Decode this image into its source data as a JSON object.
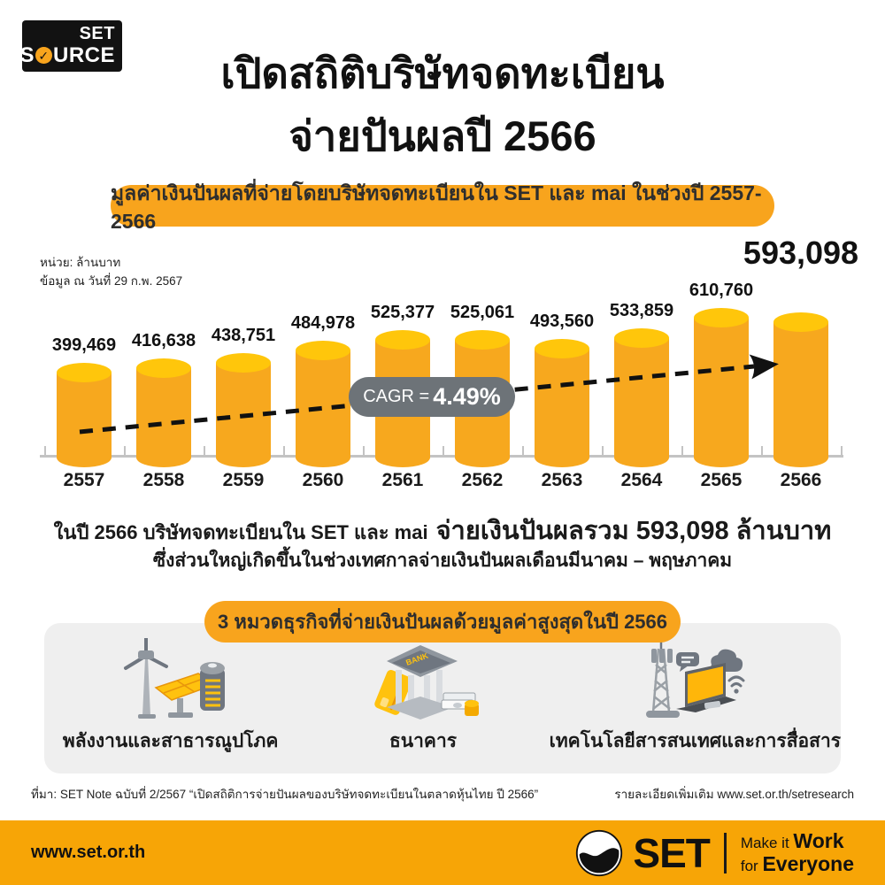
{
  "brand_badge": {
    "line1": "SET",
    "line2_prefix": "S",
    "line2_o": "✓",
    "line2_suffix": "URCE"
  },
  "header": {
    "title_line1": "เปิดสถิติบริษัทจดทะเบียน",
    "title_line2": "จ่ายปันผลปี 2566"
  },
  "banner": {
    "text": "มูลค่าเงินปันผลที่จ่ายโดยบริษัทจดทะเบียนใน SET และ mai ในช่วงปี 2557-2566"
  },
  "chart_notes": {
    "unit": "หน่วย: ล้านบาท",
    "as_of": "ข้อมูล ณ วันที่ 29 ก.พ. 2567"
  },
  "chart_data": {
    "type": "bar",
    "title": "มูลค่าเงินปันผลที่จ่ายโดยบริษัทจดทะเบียนใน SET และ mai ในช่วงปี 2557-2566",
    "unit": "ล้านบาท",
    "categories": [
      "2557",
      "2558",
      "2559",
      "2560",
      "2561",
      "2562",
      "2563",
      "2564",
      "2565",
      "2566"
    ],
    "values": [
      399469,
      416638,
      438751,
      484978,
      525377,
      525061,
      493560,
      533859,
      610760,
      593098
    ],
    "value_labels": [
      "399,469",
      "416,638",
      "438,751",
      "484,978",
      "525,377",
      "525,061",
      "493,560",
      "533,859",
      "610,760",
      "593,098"
    ],
    "highlight_index": 9,
    "cagr_prefix": "CAGR = ",
    "cagr_value": "4.49%",
    "ylim": [
      0,
      650000
    ],
    "grid": false,
    "legend": "none",
    "bar_color": "#F7A81E",
    "bar_top_color": "#FFC60B",
    "trend": "dashed arrow rising left-to-right"
  },
  "summary": {
    "line1_normal": "ในปี 2566 บริษัทจดทะเบียนใน SET และ mai",
    "line1_bold": "จ่ายเงินปันผลรวม 593,098 ล้านบาท",
    "line2": "ซึ่งส่วนใหญ่เกิดขึ้นในช่วงเทศกาลจ่ายเงินปันผลเดือนมีนาคม – พฤษภาคม"
  },
  "sectors": {
    "heading": "3 หมวดธุรกิจที่จ่ายเงินปันผลด้วยมูลค่าสูงสุดในปี 2566",
    "items": [
      {
        "label": "พลังงานและสาธารณูปโภค",
        "icon": "energy-utilities-icon"
      },
      {
        "label": "ธนาคาร",
        "icon": "bank-icon"
      },
      {
        "label": "เทคโนโลยีสารสนเทศและการสื่อสาร",
        "icon": "ict-icon"
      }
    ]
  },
  "footnote": {
    "source": "ที่มา: SET Note ฉบับที่ 2/2567 “เปิดสถิติการจ่ายปันผลของบริษัทจดทะเบียนในตลาดหุ้นไทย ปี 2566”",
    "more": "รายละเอียดเพิ่มเติม www.set.or.th/setresearch"
  },
  "footer": {
    "url": "www.set.or.th",
    "logo_text": "SET",
    "tagline_l1_normal": "Make it ",
    "tagline_l1_bold": "Work",
    "tagline_l2_normal": "for ",
    "tagline_l2_bold": "Everyone",
    "bar_color": "#F7A506"
  },
  "palette": {
    "accent_orange": "#F8A41D",
    "cagr_pill_gray": "#6D7378",
    "panel_gray": "#EFEFEF"
  }
}
